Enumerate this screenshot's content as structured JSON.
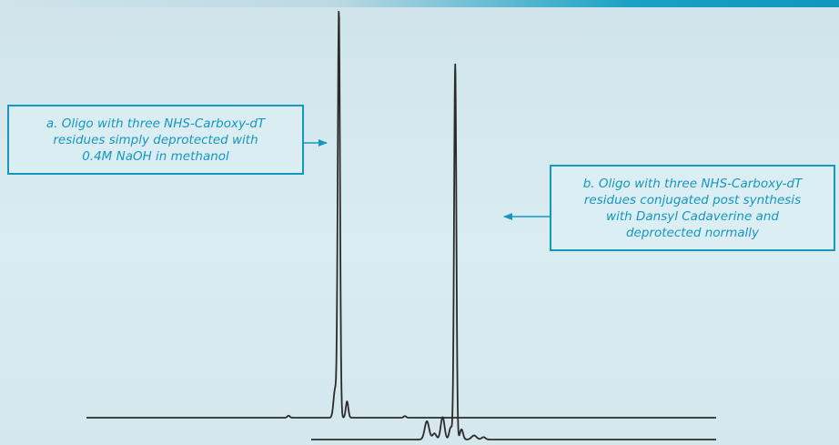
{
  "colors": {
    "accent": "#1598bf",
    "trace": "#2b2b2b"
  },
  "annotations": {
    "a": {
      "lines": [
        "a.  Oligo with three NHS-Carboxy-dT",
        "residues simply deprotected with",
        "0.4M NaOH in methanol"
      ]
    },
    "b": {
      "lines": [
        "b.  Oligo with three NHS-Carboxy-dT",
        "residues conjugated post synthesis",
        "with Dansyl Cadaverine and",
        "deprotected normally"
      ]
    }
  },
  "chart_data": {
    "type": "line",
    "title": "",
    "xlabel": "",
    "ylabel": "",
    "grid": false,
    "legend": "none",
    "xlim": [
      0,
      100
    ],
    "ylim": [
      0,
      100
    ],
    "series": [
      {
        "peaks": [
          {
            "x": 40.0,
            "height": 100,
            "width": 0.18
          },
          {
            "x": 39.4,
            "height": 7,
            "width": 0.25
          },
          {
            "x": 41.3,
            "height": 4,
            "width": 0.2
          },
          {
            "x": 32.0,
            "height": 0.5,
            "width": 0.2
          },
          {
            "x": 50.5,
            "height": 0.4,
            "width": 0.2
          }
        ]
      },
      {
        "peaks": [
          {
            "x": 58.5,
            "height": 92,
            "width": 0.18
          },
          {
            "x": 54.0,
            "height": 4.5,
            "width": 0.35
          },
          {
            "x": 56.5,
            "height": 5.5,
            "width": 0.3
          },
          {
            "x": 55.2,
            "height": 1.5,
            "width": 0.3
          },
          {
            "x": 57.8,
            "height": 3,
            "width": 0.25
          },
          {
            "x": 59.5,
            "height": 2.5,
            "width": 0.25
          },
          {
            "x": 61.5,
            "height": 1,
            "width": 0.4
          },
          {
            "x": 63.0,
            "height": 0.6,
            "width": 0.3
          }
        ]
      }
    ]
  }
}
